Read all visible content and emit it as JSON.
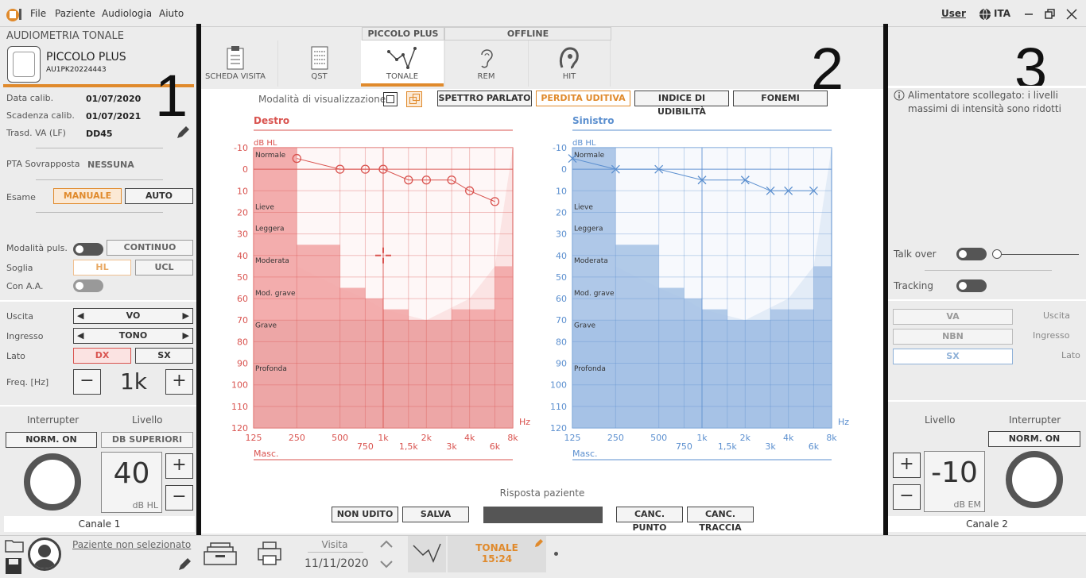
{
  "menu": {
    "file": "File",
    "paziente": "Paziente",
    "audiologia": "Audiologia",
    "aiuto": "Aiuto",
    "user": "User",
    "lang": "ITA"
  },
  "left": {
    "title": "AUDIOMETRIA TONALE",
    "device": "PICCOLO PLUS",
    "serial": "AU1PK20224443",
    "calib_label": "Data calib.",
    "calib_value": "01/07/2020",
    "expiry_label": "Scadenza calib.",
    "expiry_value": "01/07/2021",
    "trasd_label": "Trasd. VA (LF)",
    "trasd_value": "DD45",
    "pta_label": "PTA Sovrapposta",
    "pta_value": "NESSUNA",
    "esame_label": "Esame",
    "manuale": "MANUALE",
    "auto": "AUTO",
    "puls_label": "Modalità puls.",
    "continuo": "CONTINUO",
    "soglia_label": "Soglia",
    "hl": "HL",
    "ucl": "UCL",
    "aa_label": "Con A.A.",
    "uscita_label": "Uscita",
    "uscita_value": "VO",
    "ingresso_label": "Ingresso",
    "ingresso_value": "TONO",
    "lato_label": "Lato",
    "dx": "DX",
    "sx": "SX",
    "freq_label": "Freq. [Hz]",
    "freq_value": "1k",
    "minus": "−",
    "plus": "+",
    "interrupter_label": "Interrupter",
    "livello_label": "Livello",
    "norm_on": "NORM. ON",
    "db_sup": "DB SUPERIORI",
    "level_value": "40",
    "level_unit": "dB HL",
    "channel": "Canale 1",
    "patient": "Paziente non selezionato"
  },
  "tabs": {
    "group1": "PICCOLO PLUS",
    "group2": "OFFLINE",
    "items": [
      "SCHEDA VISITA",
      "QST",
      "TONALE",
      "REM",
      "HIT"
    ]
  },
  "annotations": {
    "n1": "1",
    "n2": "2",
    "n3": "3"
  },
  "view": {
    "mode_label": "Modalità di visualizzazione",
    "spettro": "SPETTRO PARLATO",
    "perdita": "PERDITA UDITIVA",
    "indice": "INDICE DI UDIBILITÀ",
    "fonemi": "FONEMI"
  },
  "chart_data": [
    {
      "type": "line",
      "title": "Destro",
      "ylabel": "dB HL",
      "xlabel": "Hz",
      "x2label": "Masc.",
      "color": "#d9534f",
      "x_ticks": [
        "125",
        "250",
        "500",
        "1k",
        "2k",
        "4k",
        "8k"
      ],
      "x_ticks2": [
        "750",
        "1,5k",
        "3k",
        "6k"
      ],
      "y_ticks": [
        -10,
        0,
        10,
        20,
        30,
        40,
        50,
        60,
        70,
        80,
        90,
        100,
        110,
        120
      ],
      "ylim": [
        -10,
        120
      ],
      "zones": [
        "Normale",
        "Lieve",
        "Leggera",
        "Moderata",
        "Mod. grave",
        "Grave",
        "Profonda"
      ],
      "x": [
        250,
        500,
        750,
        1000,
        1500,
        2000,
        3000,
        4000,
        6000
      ],
      "values": [
        -5,
        0,
        0,
        0,
        5,
        5,
        5,
        10,
        15
      ]
    },
    {
      "type": "line",
      "title": "Sinistro",
      "ylabel": "dB HL",
      "xlabel": "Hz",
      "x2label": "Masc.",
      "color": "#5b8fcf",
      "x_ticks": [
        "125",
        "250",
        "500",
        "1k",
        "2k",
        "4k",
        "8k"
      ],
      "x_ticks2": [
        "750",
        "1,5k",
        "3k",
        "6k"
      ],
      "y_ticks": [
        -10,
        0,
        10,
        20,
        30,
        40,
        50,
        60,
        70,
        80,
        90,
        100,
        110,
        120
      ],
      "ylim": [
        -10,
        120
      ],
      "zones": [
        "Normale",
        "Lieve",
        "Leggera",
        "Moderata",
        "Mod. grave",
        "Grave",
        "Profonda"
      ],
      "x": [
        125,
        250,
        500,
        1000,
        2000,
        3000,
        4000,
        6000
      ],
      "values": [
        -5,
        0,
        0,
        5,
        5,
        10,
        10,
        10
      ]
    }
  ],
  "response": {
    "label": "Risposta paziente",
    "non_udito": "NON UDITO",
    "salva": "SALVA",
    "canc_punto": "CANC. PUNTO",
    "canc_traccia": "CANC. TRACCIA"
  },
  "right": {
    "warning": "Alimentatore scollegato: i livelli massimi di intensità sono ridotti",
    "talk_over": "Talk over",
    "tracking": "Tracking",
    "va": "VA",
    "uscita": "Uscita",
    "nbn": "NBN",
    "ingresso": "Ingresso",
    "sx": "SX",
    "lato": "Lato",
    "livello": "Livello",
    "interrupter": "Interrupter",
    "norm_on": "NORM. ON",
    "level_value": "-10",
    "level_unit": "dB EM",
    "channel": "Canale 2",
    "plus": "+",
    "minus": "−"
  },
  "bottom": {
    "visita_label": "Visita",
    "visita_date": "11/11/2020",
    "session_title": "TONALE",
    "session_time": "15:24"
  }
}
